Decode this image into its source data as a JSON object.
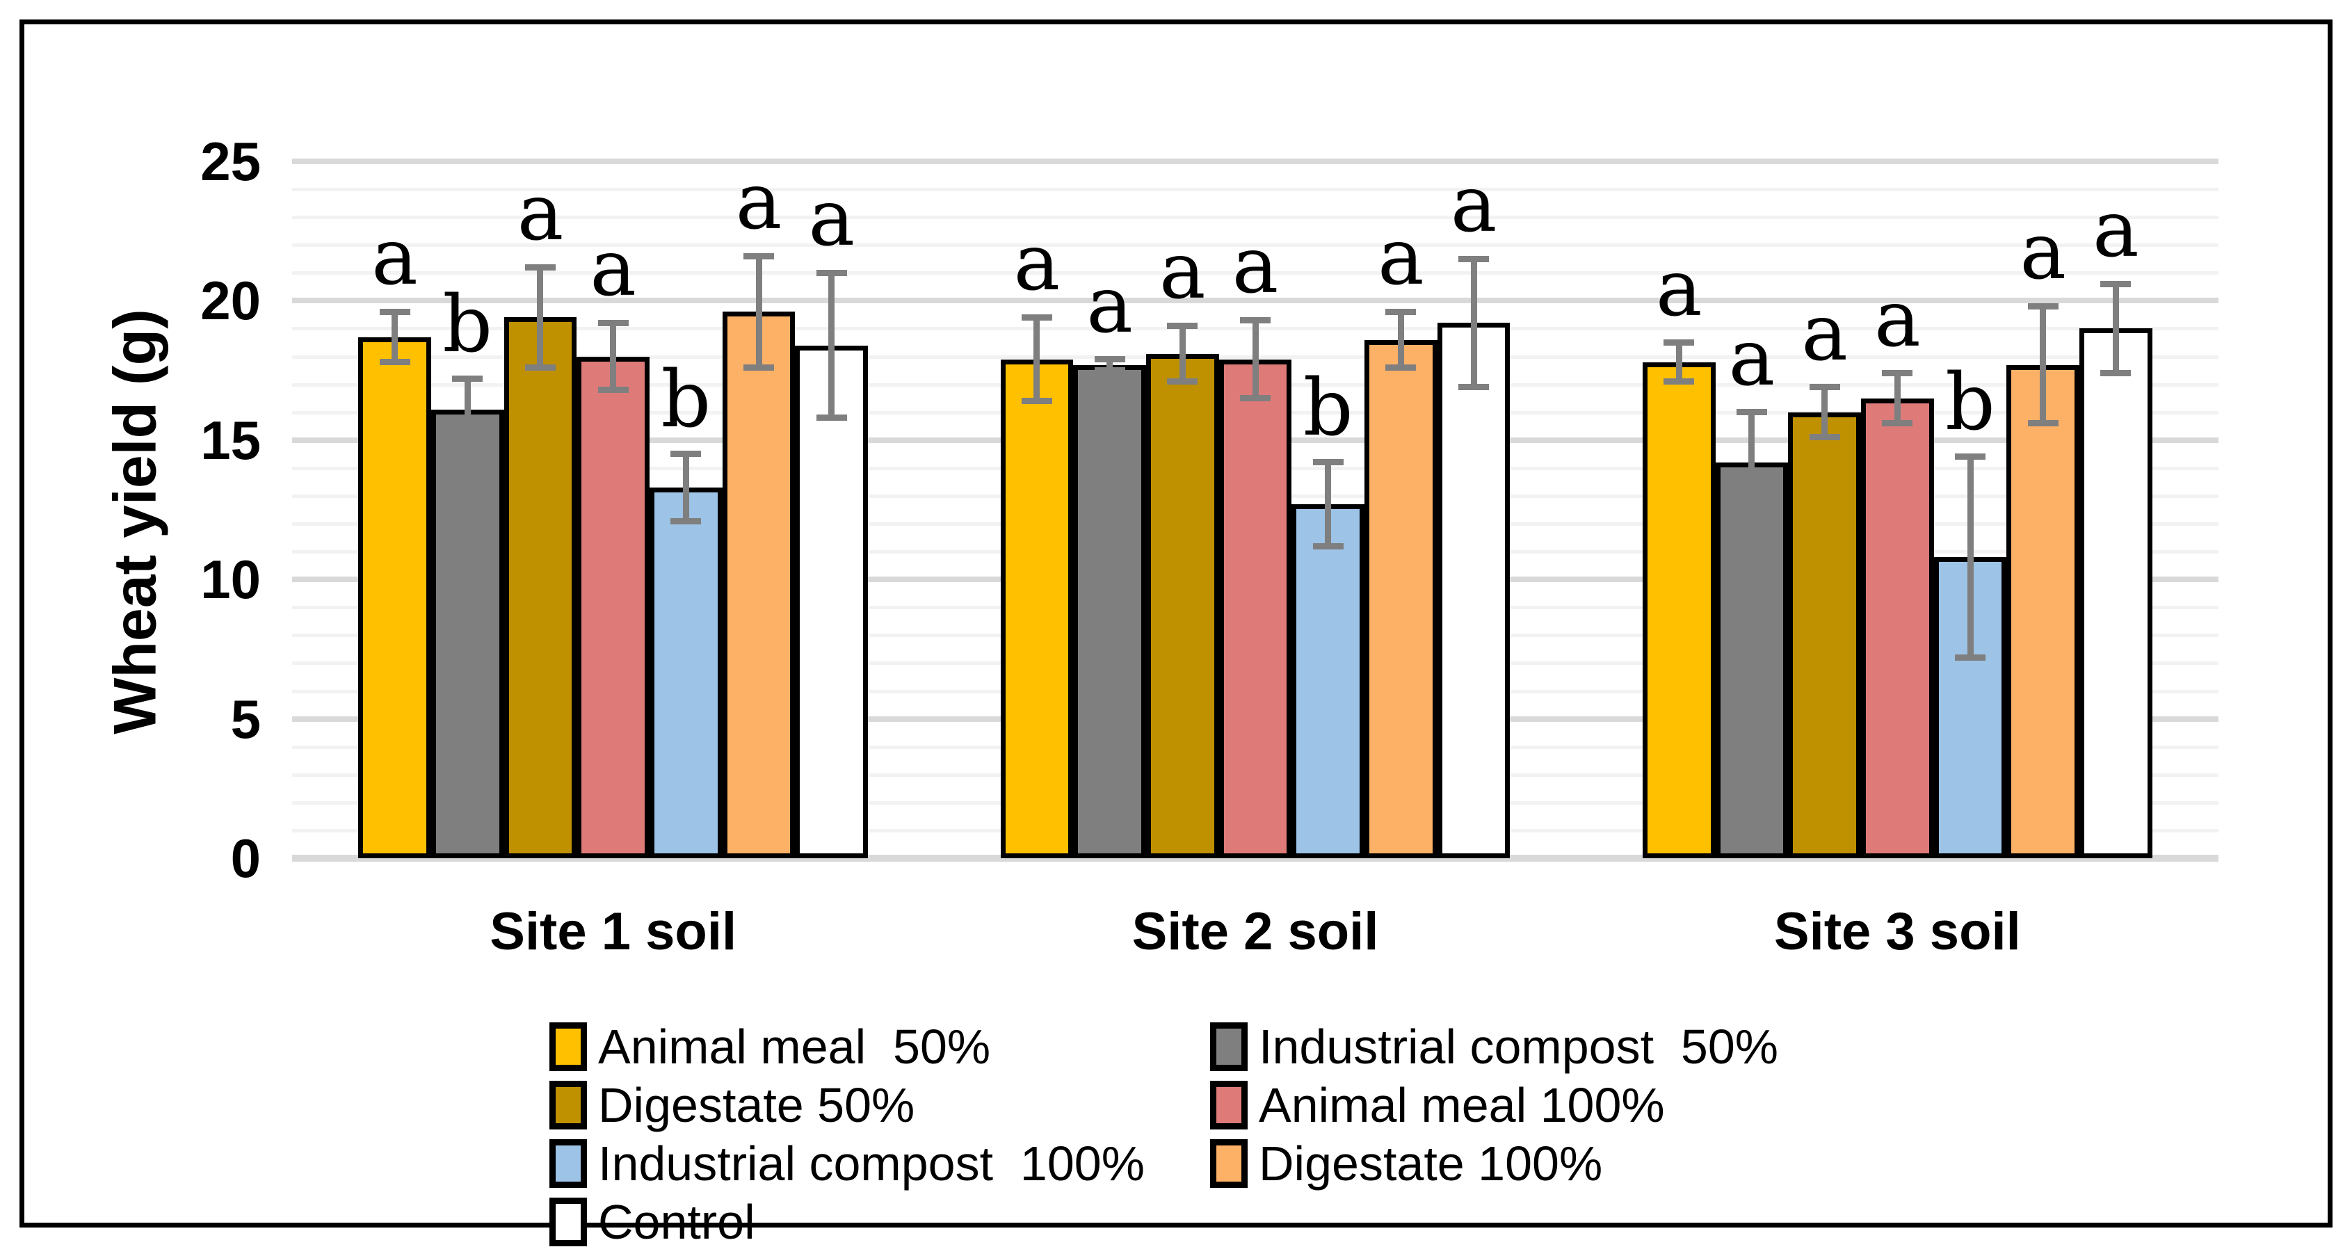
{
  "chart_data": {
    "type": "bar",
    "title": "",
    "xlabel": "",
    "ylabel": "Wheat yield (g)",
    "ylim": [
      0,
      25
    ],
    "y_major_ticks": [
      0,
      5,
      10,
      15,
      20,
      25
    ],
    "y_minor_step": 1,
    "grid": true,
    "legend_position": "bottom",
    "categories": [
      "Site 1 soil",
      "Site 2 soil",
      "Site 3 soil"
    ],
    "series": [
      {
        "name": "Animal meal  50%",
        "color": "#FFC000",
        "values": [
          18.7,
          17.9,
          17.8
        ],
        "errors": [
          0.9,
          1.5,
          0.7
        ],
        "letters": [
          "a",
          "a",
          "a"
        ]
      },
      {
        "name": "Industrial compost  50%",
        "color": "#7F7F7F",
        "values": [
          16.1,
          17.7,
          14.2
        ],
        "errors": [
          1.1,
          0.2,
          1.8
        ],
        "letters": [
          "b",
          "a",
          "a"
        ]
      },
      {
        "name": "Digestate 50%",
        "color": "#BF9000",
        "values": [
          19.4,
          18.1,
          16.0
        ],
        "errors": [
          1.8,
          1.0,
          0.9
        ],
        "letters": [
          "a",
          "a",
          "a"
        ]
      },
      {
        "name": "Animal meal 100%",
        "color": "#DE7B79",
        "values": [
          18.0,
          17.9,
          16.5
        ],
        "errors": [
          1.2,
          1.4,
          0.9
        ],
        "letters": [
          "a",
          "a",
          "a"
        ]
      },
      {
        "name": "Industrial compost  100%",
        "color": "#9DC3E6",
        "values": [
          13.3,
          12.7,
          10.8
        ],
        "errors": [
          1.2,
          1.5,
          3.6
        ],
        "letters": [
          "b",
          "b",
          "b"
        ]
      },
      {
        "name": "Digestate 100%",
        "color": "#FCB167",
        "values": [
          19.6,
          18.6,
          17.7
        ],
        "errors": [
          2.0,
          1.0,
          2.1
        ],
        "letters": [
          "a",
          "a",
          "a"
        ]
      },
      {
        "name": "Control",
        "color": "#FFFFFF",
        "values": [
          18.4,
          19.2,
          19.0
        ],
        "errors": [
          2.6,
          2.3,
          1.6
        ],
        "letters": [
          "a",
          "a",
          "a"
        ]
      }
    ]
  },
  "styles": {
    "major_grid_color": "#D9D9D9",
    "minor_grid_color": "#F2F2F2",
    "axis_line_color": "#D9D9D9",
    "bar_border_color": "#000000",
    "error_bar_color": "#7F7F7F",
    "letter_color": "#000000",
    "text_color": "#000000"
  }
}
